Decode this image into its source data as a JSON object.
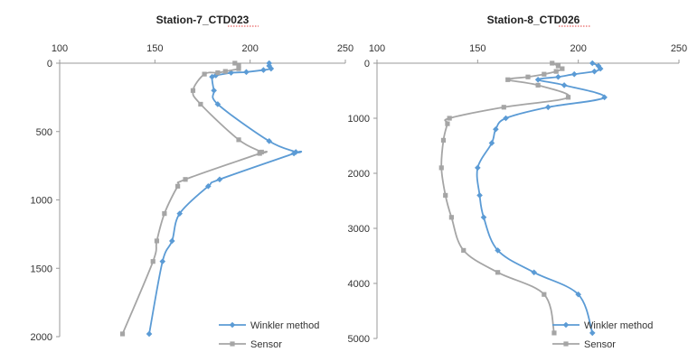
{
  "chart_data": [
    {
      "type": "line",
      "title": "Station-7_CTD023",
      "xlim": [
        100,
        250
      ],
      "ylim": [
        0,
        2000
      ],
      "y_inverted": true,
      "x_axis_position": "top",
      "x_ticks": [
        100,
        150,
        200,
        250
      ],
      "y_ticks": [
        0,
        500,
        1000,
        1500,
        2000
      ],
      "grid": false,
      "legend_position": "bottom-right",
      "series": [
        {
          "name": "Winkler method",
          "color": "#5b9bd5",
          "marker": "diamond",
          "points": [
            [
              210,
              0
            ],
            [
              210,
              20
            ],
            [
              211,
              40
            ],
            [
              207,
              50
            ],
            [
              198,
              65
            ],
            [
              190,
              70
            ],
            [
              182,
              90
            ],
            [
              180,
              100
            ],
            [
              181,
              200
            ],
            [
              183,
              300
            ],
            [
              210,
              570
            ],
            [
              224,
              650
            ],
            [
              223,
              660
            ],
            [
              184,
              850
            ],
            [
              178,
              900
            ],
            [
              163,
              1100
            ],
            [
              159,
              1300
            ],
            [
              154,
              1450
            ],
            [
              147,
              1980
            ]
          ]
        },
        {
          "name": "Sensor",
          "color": "#a5a5a5",
          "marker": "square",
          "points": [
            [
              192,
              0
            ],
            [
              194,
              20
            ],
            [
              194,
              40
            ],
            [
              187,
              60
            ],
            [
              183,
              70
            ],
            [
              176,
              80
            ],
            [
              170,
              200
            ],
            [
              174,
              300
            ],
            [
              194,
              560
            ],
            [
              206,
              650
            ],
            [
              205,
              660
            ],
            [
              166,
              850
            ],
            [
              162,
              900
            ],
            [
              155,
              1100
            ],
            [
              151,
              1300
            ],
            [
              149,
              1450
            ],
            [
              133,
              1980
            ]
          ]
        }
      ]
    },
    {
      "type": "line",
      "title": "Station-8_CTD026",
      "xlim": [
        100,
        250
      ],
      "ylim": [
        0,
        5000
      ],
      "y_inverted": true,
      "x_axis_position": "top",
      "x_ticks": [
        100,
        150,
        200,
        250
      ],
      "y_ticks": [
        0,
        1000,
        2000,
        3000,
        4000,
        5000
      ],
      "grid": false,
      "legend_position": "bottom-right",
      "series": [
        {
          "name": "Winkler method",
          "color": "#5b9bd5",
          "marker": "diamond",
          "points": [
            [
              207,
              0
            ],
            [
              210,
              50
            ],
            [
              211,
              100
            ],
            [
              208,
              150
            ],
            [
              198,
              200
            ],
            [
              190,
              250
            ],
            [
              180,
              300
            ],
            [
              193,
              400
            ],
            [
              213,
              620
            ],
            [
              185,
              800
            ],
            [
              164,
              1000
            ],
            [
              159,
              1200
            ],
            [
              157,
              1450
            ],
            [
              150,
              1900
            ],
            [
              151,
              2400
            ],
            [
              153,
              2800
            ],
            [
              160,
              3400
            ],
            [
              178,
              3800
            ],
            [
              200,
              4200
            ],
            [
              207,
              4900
            ]
          ]
        },
        {
          "name": "Sensor",
          "color": "#a5a5a5",
          "marker": "square",
          "points": [
            [
              187,
              0
            ],
            [
              190,
              50
            ],
            [
              192,
              100
            ],
            [
              189,
              150
            ],
            [
              183,
              200
            ],
            [
              175,
              250
            ],
            [
              165,
              300
            ],
            [
              180,
              400
            ],
            [
              195,
              620
            ],
            [
              163,
              800
            ],
            [
              136,
              1000
            ],
            [
              135,
              1100
            ],
            [
              133,
              1400
            ],
            [
              132,
              1900
            ],
            [
              134,
              2400
            ],
            [
              137,
              2800
            ],
            [
              143,
              3400
            ],
            [
              160,
              3800
            ],
            [
              183,
              4200
            ],
            [
              188,
              4900
            ]
          ]
        }
      ]
    }
  ]
}
